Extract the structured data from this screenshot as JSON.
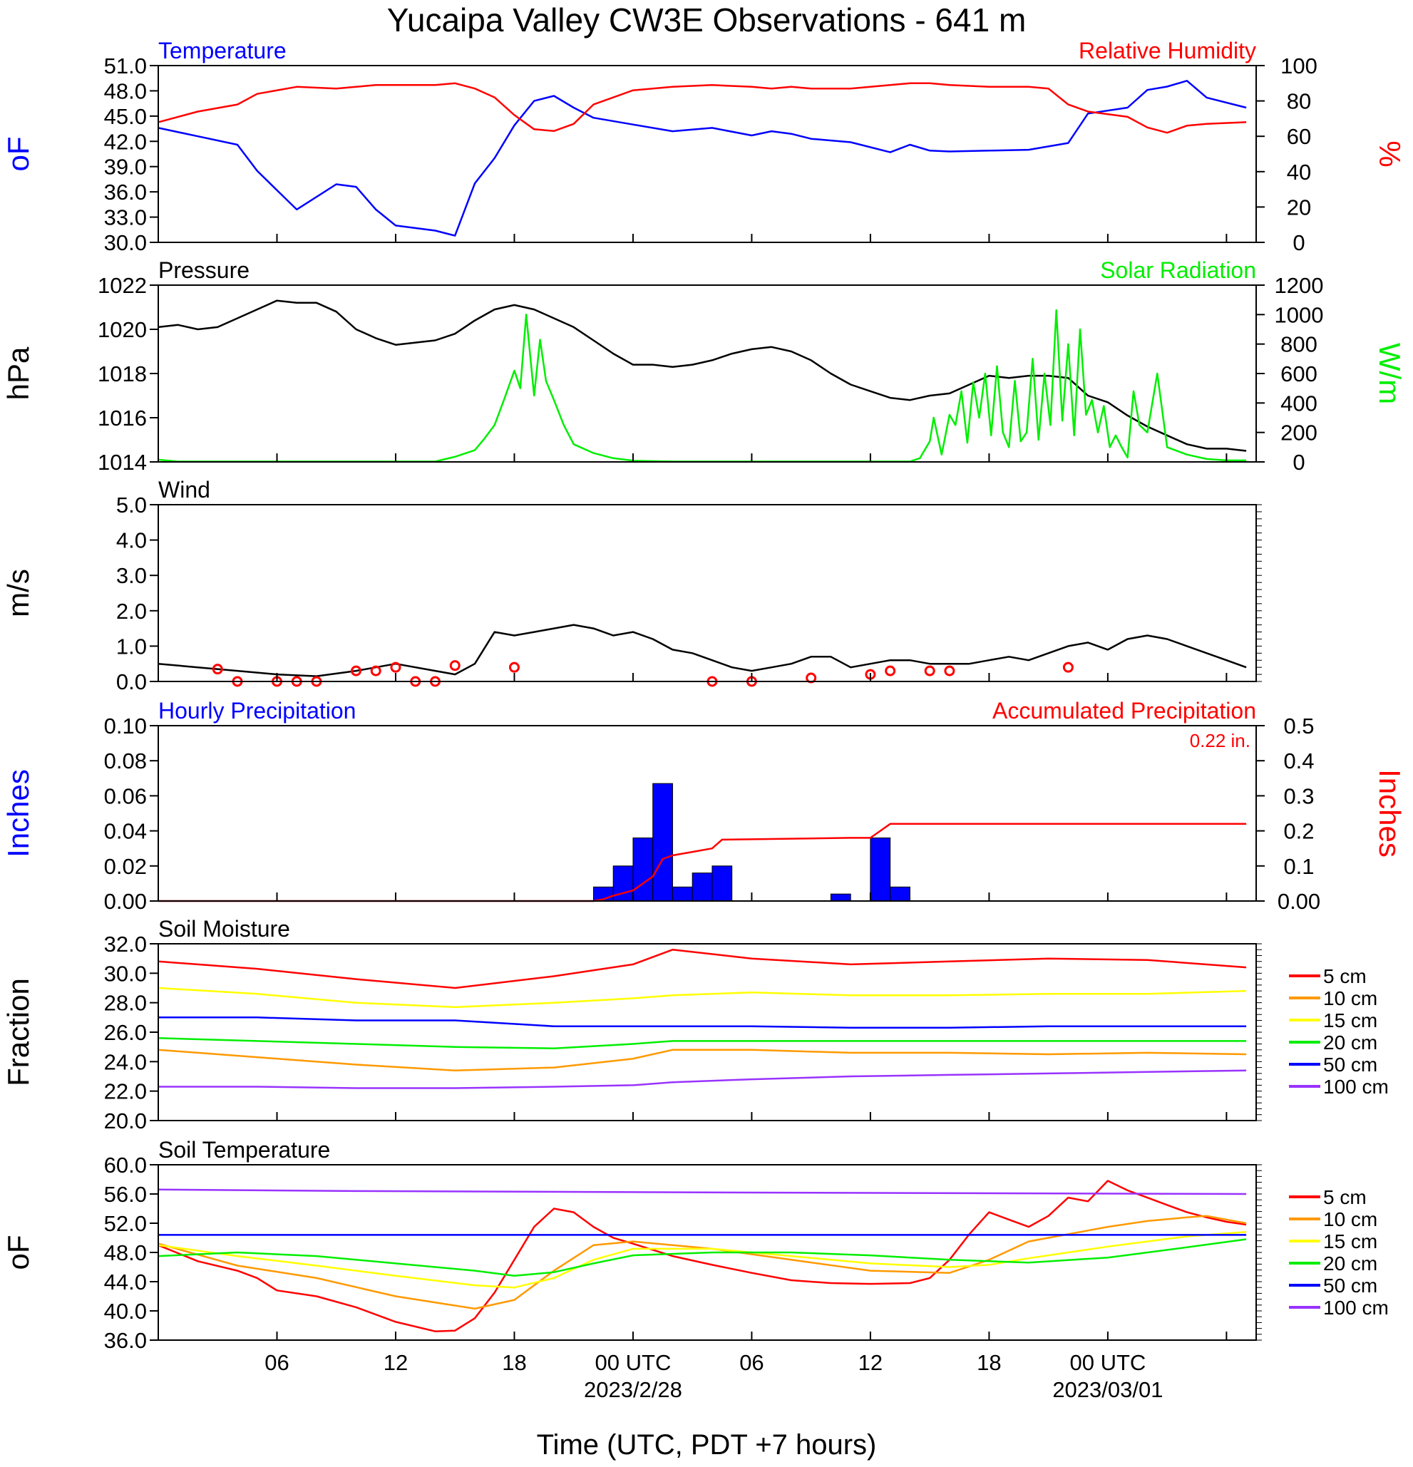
{
  "title": "Yucaipa Valley CW3E Observations - 641 m",
  "xlabel": "Time (UTC, PDT +7 hours)",
  "x_ticks": [
    "06",
    "12",
    "18",
    "00 UTC",
    "06",
    "12",
    "18",
    "00 UTC"
  ],
  "x_dates": [
    "2023/2/28",
    "2023/03/01"
  ],
  "colors": {
    "blue": "#0000ff",
    "red": "#ff0000",
    "green": "#00ee00",
    "black": "#000000",
    "orange": "#ff9900",
    "yellow": "#ffff00",
    "purple": "#9933ff"
  },
  "chart_data": [
    {
      "type": "line",
      "left_title": "Temperature",
      "right_title": "Relative Humidity",
      "ylabel": "oF",
      "ylabel_right": "%",
      "ylim": [
        30,
        51
      ],
      "ylim_right": [
        0,
        100
      ],
      "yticks": [
        "30.0",
        "33.0",
        "36.0",
        "39.0",
        "42.0",
        "45.0",
        "48.0",
        "51.0"
      ],
      "yticks_right": [
        "0",
        "20",
        "40",
        "60",
        "80",
        "100"
      ],
      "x_hours": [
        0,
        2,
        4,
        5,
        7,
        9,
        10,
        11,
        12,
        14,
        15,
        16,
        17,
        18,
        19,
        20,
        21,
        22,
        24,
        26,
        28,
        30,
        31,
        32,
        33,
        35,
        37,
        38,
        39,
        40,
        42,
        44,
        45,
        46,
        47,
        49,
        50,
        51,
        52,
        53,
        55
      ],
      "series": [
        {
          "name": "Temperature",
          "axis": "left",
          "color": "blue",
          "values": [
            43.6,
            42.6,
            41.6,
            38.5,
            33.9,
            36.9,
            36.6,
            33.9,
            32.0,
            31.4,
            30.8,
            37.0,
            40.0,
            43.9,
            46.8,
            47.4,
            46.0,
            44.8,
            44.0,
            43.2,
            43.6,
            42.7,
            43.2,
            42.9,
            42.3,
            41.9,
            40.7,
            41.6,
            40.9,
            40.8,
            40.9,
            41.0,
            41.4,
            41.8,
            45.3,
            46.0,
            48.1,
            48.5,
            49.2,
            47.2,
            46.0
          ]
        },
        {
          "name": "Relative Humidity",
          "axis": "right",
          "color": "red",
          "values": [
            68,
            74,
            78,
            84,
            88,
            87,
            88,
            89,
            89,
            89,
            90,
            87,
            82,
            72,
            64,
            63,
            67,
            78,
            86,
            88,
            89,
            88,
            87,
            88,
            87,
            87,
            89,
            90,
            90,
            89,
            88,
            88,
            87,
            78,
            74,
            71,
            65,
            62,
            66,
            67,
            68
          ]
        }
      ]
    },
    {
      "type": "line",
      "left_title": "Pressure",
      "right_title": "Solar Radiation",
      "ylabel": "hPa",
      "ylabel_right": "W/m",
      "ylim": [
        1014,
        1022
      ],
      "ylim_right": [
        0,
        1200
      ],
      "yticks": [
        "1014",
        "1016",
        "1018",
        "1020",
        "1022"
      ],
      "yticks_right": [
        "0",
        "200",
        "400",
        "600",
        "800",
        "1000",
        "1200"
      ],
      "series": [
        {
          "name": "Pressure",
          "axis": "left",
          "color": "black",
          "x": [
            0,
            1,
            2,
            3,
            4,
            5,
            6,
            7,
            8,
            9,
            10,
            11,
            12,
            13,
            14,
            15,
            16,
            17,
            18,
            19,
            20,
            21,
            22,
            23,
            24,
            25,
            26,
            27,
            28,
            29,
            30,
            31,
            32,
            33,
            34,
            35,
            36,
            37,
            38,
            39,
            40,
            41,
            42,
            43,
            44,
            45,
            46,
            47,
            48,
            49,
            50,
            51,
            52,
            53,
            54,
            55
          ],
          "values": [
            1020.1,
            1020.2,
            1020.0,
            1020.1,
            1020.5,
            1020.9,
            1021.3,
            1021.2,
            1021.2,
            1020.8,
            1020.0,
            1019.6,
            1019.3,
            1019.4,
            1019.5,
            1019.8,
            1020.4,
            1020.9,
            1021.1,
            1020.9,
            1020.5,
            1020.1,
            1019.5,
            1018.9,
            1018.4,
            1018.4,
            1018.3,
            1018.4,
            1018.6,
            1018.9,
            1019.1,
            1019.2,
            1019.0,
            1018.6,
            1018.0,
            1017.5,
            1017.2,
            1016.9,
            1016.8,
            1017.0,
            1017.1,
            1017.5,
            1017.9,
            1017.8,
            1017.9,
            1017.9,
            1017.8,
            1017.0,
            1016.7,
            1016.1,
            1015.6,
            1015.2,
            1014.8,
            1014.6,
            1014.6,
            1014.5
          ]
        },
        {
          "name": "Solar Radiation",
          "axis": "right",
          "color": "green",
          "x": [
            0,
            1,
            14,
            15,
            16,
            16.5,
            17,
            17.5,
            18,
            18.3,
            18.6,
            19,
            19.3,
            19.6,
            20,
            20.5,
            21,
            22,
            23,
            24,
            26,
            38,
            38.5,
            39,
            39.2,
            39.6,
            40,
            40.3,
            40.6,
            40.9,
            41.2,
            41.5,
            41.8,
            42.1,
            42.4,
            42.7,
            43,
            43.3,
            43.6,
            43.9,
            44.2,
            44.5,
            44.8,
            45.1,
            45.4,
            45.7,
            46,
            46.3,
            46.6,
            46.9,
            47.2,
            47.5,
            47.8,
            48.1,
            48.4,
            48.7,
            49,
            49.3,
            49.6,
            50,
            50.5,
            51,
            52,
            53,
            54,
            55
          ],
          "values": [
            15,
            3,
            3,
            35,
            80,
            160,
            250,
            430,
            620,
            500,
            1000,
            450,
            830,
            550,
            420,
            250,
            120,
            60,
            25,
            8,
            3,
            3,
            25,
            140,
            300,
            50,
            320,
            250,
            480,
            130,
            540,
            300,
            600,
            180,
            650,
            200,
            100,
            550,
            140,
            200,
            700,
            150,
            600,
            250,
            1030,
            280,
            800,
            180,
            900,
            320,
            420,
            200,
            380,
            100,
            180,
            100,
            30,
            480,
            250,
            200,
            600,
            100,
            50,
            20,
            10,
            10
          ]
        }
      ]
    },
    {
      "type": "line",
      "left_title": "Wind",
      "ylabel": "m/s",
      "ylim": [
        0,
        5
      ],
      "yticks": [
        "0.0",
        "1.0",
        "2.0",
        "3.0",
        "4.0",
        "5.0"
      ],
      "series": [
        {
          "name": "Wind",
          "axis": "left",
          "color": "black",
          "x": [
            0,
            2,
            4,
            6,
            8,
            10,
            12,
            14,
            15,
            16,
            17,
            18,
            19,
            20,
            21,
            22,
            23,
            24,
            25,
            26,
            27,
            28,
            29,
            30,
            31,
            32,
            33,
            34,
            35,
            36,
            37,
            38,
            39,
            40,
            41,
            42,
            43,
            44,
            45,
            46,
            47,
            48,
            49,
            50,
            51,
            52,
            53,
            54,
            55
          ],
          "values": [
            0.5,
            0.4,
            0.3,
            0.2,
            0.15,
            0.3,
            0.5,
            0.3,
            0.2,
            0.5,
            1.4,
            1.3,
            1.4,
            1.5,
            1.6,
            1.5,
            1.3,
            1.4,
            1.2,
            0.9,
            0.8,
            0.6,
            0.4,
            0.3,
            0.4,
            0.5,
            0.7,
            0.7,
            0.4,
            0.5,
            0.6,
            0.6,
            0.5,
            0.5,
            0.5,
            0.6,
            0.7,
            0.6,
            0.8,
            1.0,
            1.1,
            0.9,
            1.2,
            1.3,
            1.2,
            1.0,
            0.8,
            0.6,
            0.4
          ]
        }
      ],
      "calm_circles_x": [
        3,
        4,
        6,
        7,
        8,
        10,
        11,
        12,
        13,
        14,
        15,
        18,
        28,
        30,
        33,
        36,
        37,
        39,
        40,
        46
      ],
      "calm_circles_y": [
        0.35,
        0.0,
        0.0,
        0.0,
        0.0,
        0.3,
        0.3,
        0.4,
        0.0,
        0.0,
        0.45,
        0.4,
        0.0,
        0.0,
        0.1,
        0.2,
        0.3,
        0.3,
        0.3,
        0.4
      ]
    },
    {
      "type": "bar",
      "left_title": "Hourly Precipitation",
      "right_title": "Accumulated Precipitation",
      "annotation": "0.22 in.",
      "ylabel": "Inches",
      "ylabel_right": "Inches",
      "ylim": [
        0,
        0.1
      ],
      "ylim_right": [
        0,
        0.5
      ],
      "yticks": [
        "0.00",
        "0.02",
        "0.04",
        "0.06",
        "0.08",
        "0.10"
      ],
      "yticks_right": [
        "0.00",
        "0.1",
        "0.2",
        "0.3",
        "0.4",
        "0.5"
      ],
      "bars_hour_start": [
        22,
        23,
        24,
        25,
        26,
        27,
        28,
        34,
        36,
        37
      ],
      "bars_values": [
        0.008,
        0.02,
        0.036,
        0.067,
        0.008,
        0.016,
        0.02,
        0.004,
        0.036,
        0.008
      ],
      "series": [
        {
          "name": "Accumulated Precipitation",
          "axis": "right",
          "color": "red",
          "x": [
            0,
            22,
            22.5,
            23,
            24,
            25,
            25.5,
            26,
            27,
            28,
            28.5,
            35,
            36,
            36.5,
            37,
            55
          ],
          "values": [
            0,
            0,
            0.005,
            0.015,
            0.03,
            0.07,
            0.12,
            0.13,
            0.14,
            0.15,
            0.175,
            0.18,
            0.18,
            0.2,
            0.22,
            0.22
          ]
        }
      ]
    },
    {
      "type": "line",
      "left_title": "Soil Moisture",
      "ylabel": "Fraction",
      "ylim": [
        20,
        32
      ],
      "yticks": [
        "20.0",
        "22.0",
        "24.0",
        "26.0",
        "28.0",
        "30.0",
        "32.0"
      ],
      "x_hours": [
        0,
        5,
        10,
        15,
        20,
        24,
        26,
        30,
        35,
        40,
        45,
        50,
        55
      ],
      "series": [
        {
          "name": "5 cm",
          "color": "red",
          "values": [
            30.8,
            30.3,
            29.6,
            29.0,
            29.8,
            30.6,
            31.6,
            31.0,
            30.6,
            30.8,
            31.0,
            30.9,
            30.4
          ]
        },
        {
          "name": "10 cm",
          "color": "orange",
          "values": [
            24.8,
            24.3,
            23.8,
            23.4,
            23.6,
            24.2,
            24.8,
            24.8,
            24.6,
            24.6,
            24.5,
            24.6,
            24.5
          ]
        },
        {
          "name": "15 cm",
          "color": "yellow",
          "values": [
            29.0,
            28.6,
            28.0,
            27.7,
            28.0,
            28.3,
            28.5,
            28.7,
            28.5,
            28.5,
            28.6,
            28.6,
            28.8
          ]
        },
        {
          "name": "20 cm",
          "color": "green",
          "values": [
            25.6,
            25.4,
            25.2,
            25.0,
            24.9,
            25.2,
            25.4,
            25.4,
            25.4,
            25.4,
            25.4,
            25.4,
            25.4
          ]
        },
        {
          "name": "50 cm",
          "color": "blue",
          "values": [
            27.0,
            27.0,
            26.8,
            26.8,
            26.4,
            26.4,
            26.4,
            26.4,
            26.3,
            26.3,
            26.4,
            26.4,
            26.4
          ]
        },
        {
          "name": "100 cm",
          "color": "purple",
          "values": [
            22.3,
            22.3,
            22.2,
            22.2,
            22.3,
            22.4,
            22.6,
            22.8,
            23.0,
            23.1,
            23.2,
            23.3,
            23.4
          ]
        }
      ]
    },
    {
      "type": "line",
      "left_title": "Soil Temperature",
      "ylabel": "oF",
      "ylim": [
        36,
        60
      ],
      "yticks": [
        "36.0",
        "40.0",
        "44.0",
        "48.0",
        "52.0",
        "56.0",
        "60.0"
      ],
      "series": [
        {
          "name": "5 cm",
          "color": "red",
          "x": [
            0,
            2,
            4,
            5,
            6,
            8,
            10,
            12,
            14,
            15,
            16,
            17,
            18,
            19,
            20,
            21,
            22,
            23,
            24,
            26,
            28,
            30,
            32,
            34,
            36,
            38,
            39,
            40,
            41,
            42,
            43,
            44,
            45,
            46,
            47,
            48,
            49,
            50,
            51,
            52,
            53,
            54,
            55
          ],
          "values": [
            49.0,
            46.8,
            45.5,
            44.5,
            42.8,
            42.0,
            40.5,
            38.5,
            37.2,
            37.3,
            39.0,
            42.5,
            47.0,
            51.5,
            54.0,
            53.5,
            51.5,
            50.0,
            49.2,
            47.5,
            46.3,
            45.2,
            44.2,
            43.8,
            43.7,
            43.8,
            44.5,
            47.0,
            50.5,
            53.5,
            52.5,
            51.5,
            53.0,
            55.5,
            55.0,
            57.8,
            56.5,
            55.5,
            54.5,
            53.5,
            52.8,
            52.2,
            51.8
          ]
        },
        {
          "name": "10 cm",
          "color": "orange",
          "x": [
            0,
            4,
            8,
            12,
            16,
            18,
            20,
            22,
            24,
            28,
            32,
            36,
            40,
            42,
            44,
            46,
            48,
            50,
            52,
            53,
            55
          ],
          "values": [
            49.2,
            46.2,
            44.5,
            42.0,
            40.3,
            41.5,
            45.5,
            49.0,
            49.5,
            48.5,
            47.0,
            45.5,
            45.2,
            47.0,
            49.5,
            50.5,
            51.5,
            52.3,
            52.8,
            53.0,
            52.0
          ]
        },
        {
          "name": "15 cm",
          "color": "yellow",
          "x": [
            0,
            4,
            8,
            12,
            16,
            18,
            20,
            22,
            24,
            28,
            32,
            36,
            40,
            42,
            44,
            46,
            48,
            50,
            52,
            55
          ],
          "values": [
            49.0,
            47.5,
            46.2,
            44.8,
            43.5,
            43.2,
            44.5,
            47.0,
            48.5,
            48.5,
            47.5,
            46.5,
            46.0,
            46.3,
            47.2,
            48.0,
            48.8,
            49.5,
            50.2,
            50.8
          ]
        },
        {
          "name": "20 cm",
          "color": "green",
          "x": [
            0,
            4,
            8,
            12,
            16,
            18,
            20,
            22,
            24,
            28,
            32,
            36,
            40,
            44,
            48,
            52,
            55
          ],
          "values": [
            47.5,
            48.0,
            47.5,
            46.5,
            45.5,
            44.8,
            45.3,
            46.5,
            47.6,
            48.0,
            48.0,
            47.6,
            47.0,
            46.6,
            47.3,
            48.7,
            49.8
          ]
        },
        {
          "name": "50 cm",
          "color": "blue",
          "x": [
            0,
            55
          ],
          "values": [
            50.4,
            50.4
          ]
        },
        {
          "name": "100 cm",
          "color": "purple",
          "x": [
            0,
            10,
            30,
            55
          ],
          "values": [
            56.6,
            56.4,
            56.2,
            56.0
          ]
        }
      ]
    }
  ]
}
